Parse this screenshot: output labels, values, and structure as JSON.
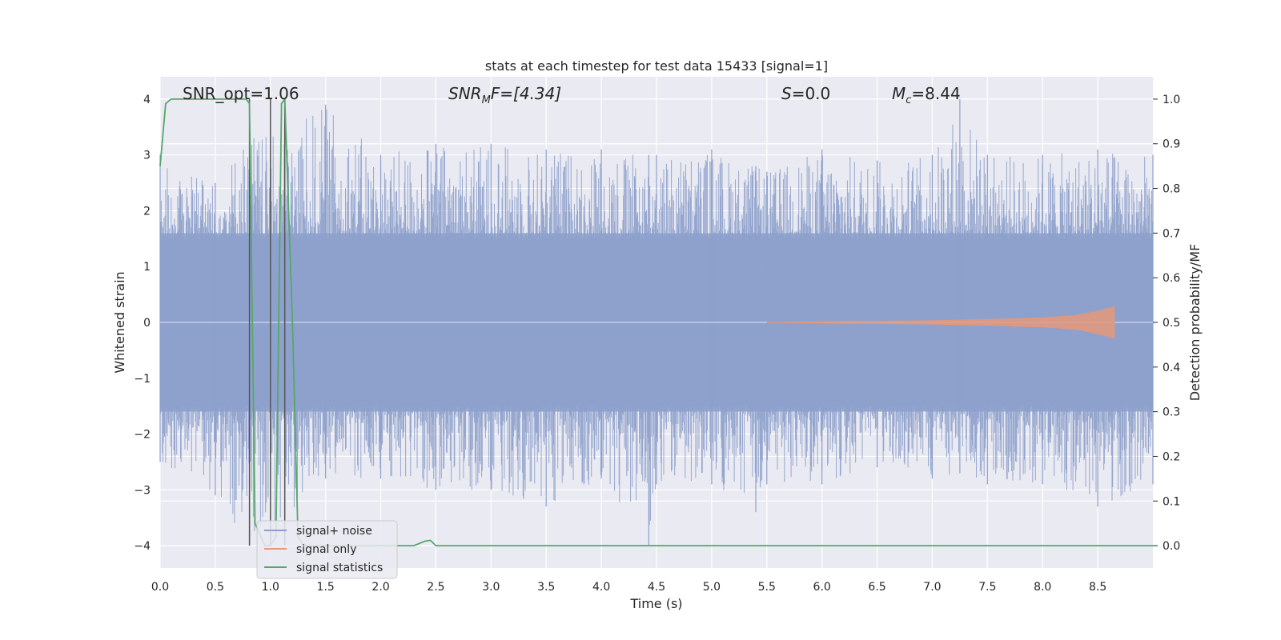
{
  "chart_data": {
    "type": "line",
    "title": "stats at each timestep for test data 15433 [signal=1]",
    "xlabel": "Time (s)",
    "ylabel_left": "Whitened strain",
    "ylabel_right": "Detection probability/MF",
    "xlim": [
      0.0,
      9.0
    ],
    "ylim_left": [
      -4.4,
      4.4
    ],
    "ylim_right": [
      -0.05,
      1.05
    ],
    "xticks": [
      "0.0",
      "0.5",
      "1.0",
      "1.5",
      "2.0",
      "2.5",
      "3.0",
      "3.5",
      "4.0",
      "4.5",
      "5.0",
      "5.5",
      "6.0",
      "6.5",
      "7.0",
      "7.5",
      "8.0",
      "8.5"
    ],
    "yticks_left": [
      "−4",
      "−3",
      "−2",
      "−1",
      "0",
      "1",
      "2",
      "3",
      "4"
    ],
    "yticks_right": [
      "0.0",
      "0.1",
      "0.2",
      "0.3",
      "0.4",
      "0.5",
      "0.6",
      "0.7",
      "0.8",
      "0.9",
      "1.0"
    ],
    "grid": true,
    "legend_position": "bottom-left",
    "annotations": {
      "snr_opt": "SNR_opt=1.06",
      "snr_mf_pre": "SNR",
      "snr_mf_sub": "M",
      "snr_mf_post": "F=[4.34]",
      "s_italic": "S",
      "s_post": "=0.0",
      "mc_italic": "M",
      "mc_sub": "c",
      "mc_post": "=8.44"
    },
    "vlines_x": [
      0.81,
      1.0,
      1.13
    ],
    "series": [
      {
        "name": "signal+ noise",
        "color": "#8da0cb",
        "description": "noise band",
        "envelope": {
          "x": [
            0.0,
            0.5,
            0.81,
            1.0,
            1.5,
            2.0,
            2.5,
            3.0,
            3.5,
            4.0,
            4.43,
            4.5,
            5.0,
            5.4,
            5.5,
            6.0,
            6.5,
            7.0,
            7.25,
            7.5,
            8.0,
            8.5,
            9.0
          ],
          "upper": [
            3.0,
            2.5,
            3.5,
            3.3,
            3.9,
            3.0,
            3.2,
            3.2,
            3.1,
            3.1,
            3.0,
            3.0,
            3.1,
            2.8,
            2.7,
            3.1,
            2.9,
            3.0,
            4.0,
            3.0,
            3.0,
            3.1,
            3.0
          ],
          "lower": [
            -2.5,
            -3.1,
            -4.0,
            -3.7,
            -2.8,
            -2.8,
            -3.0,
            -3.0,
            -3.3,
            -2.8,
            -4.0,
            -2.9,
            -2.9,
            -3.4,
            -2.9,
            -2.9,
            -2.6,
            -2.8,
            -2.7,
            -2.9,
            -2.9,
            -3.3,
            -2.9
          ]
        }
      },
      {
        "name": "signal only",
        "color": "#e5987a",
        "x": [
          5.5,
          6.0,
          7.0,
          7.5,
          8.0,
          8.3,
          8.5,
          8.65
        ],
        "amplitude": [
          0.0,
          0.01,
          0.03,
          0.05,
          0.08,
          0.12,
          0.2,
          0.28
        ]
      },
      {
        "name": "signal statistics",
        "color": "#55a868",
        "x": [
          0.0,
          0.05,
          0.1,
          0.78,
          0.81,
          0.86,
          0.95,
          1.0,
          1.05,
          1.1,
          1.13,
          1.2,
          1.25,
          1.3,
          2.3,
          2.4,
          2.45,
          2.5,
          9.0
        ],
        "y": [
          0.85,
          0.99,
          1.0,
          1.0,
          0.99,
          0.05,
          0.0,
          0.0,
          0.02,
          0.99,
          1.0,
          0.5,
          0.02,
          0.0,
          0.0,
          0.01,
          0.012,
          0.0,
          0.0
        ]
      }
    ]
  }
}
